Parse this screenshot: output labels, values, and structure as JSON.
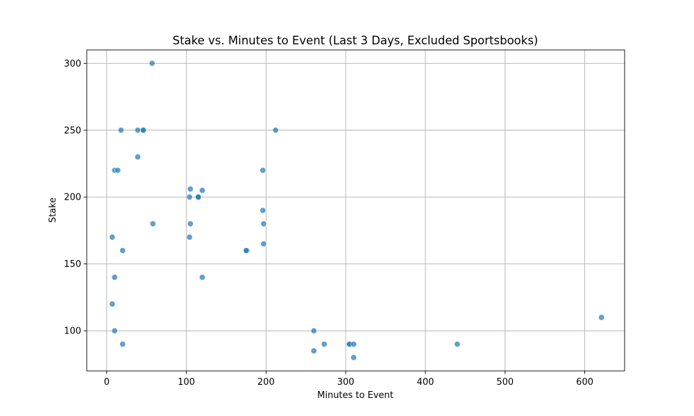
{
  "chart_data": {
    "type": "scatter",
    "title": "Stake vs. Minutes to Event (Last 3 Days, Excluded Sportsbooks)",
    "xlabel": "Minutes to Event",
    "ylabel": "Stake",
    "xlim": [
      -25,
      650
    ],
    "ylim": [
      70,
      310
    ],
    "xticks": [
      0,
      100,
      200,
      300,
      400,
      500,
      600
    ],
    "yticks": [
      100,
      150,
      200,
      250,
      300
    ],
    "xtick_labels": [
      "0",
      "100",
      "200",
      "300",
      "400",
      "500",
      "600"
    ],
    "ytick_labels": [
      "100",
      "150",
      "200",
      "250",
      "300"
    ],
    "grid": true,
    "point_color": "#1f77b4",
    "x": [
      57,
      18,
      39,
      46,
      46,
      212,
      39,
      10,
      14,
      196,
      105,
      120,
      104,
      115,
      115,
      196,
      58,
      105,
      197,
      7,
      104,
      197,
      20,
      176,
      175,
      10,
      120,
      7,
      260,
      10,
      20,
      273,
      304,
      305,
      310,
      440,
      260,
      310,
      621
    ],
    "y": [
      300,
      250,
      250,
      250,
      250,
      250,
      230,
      220,
      220,
      220,
      206,
      205,
      200,
      200,
      200,
      190,
      180,
      180,
      180,
      170,
      170,
      165,
      160,
      160,
      160,
      140,
      140,
      120,
      100,
      100,
      90,
      90,
      90,
      90,
      90,
      90,
      85,
      80,
      110
    ]
  }
}
